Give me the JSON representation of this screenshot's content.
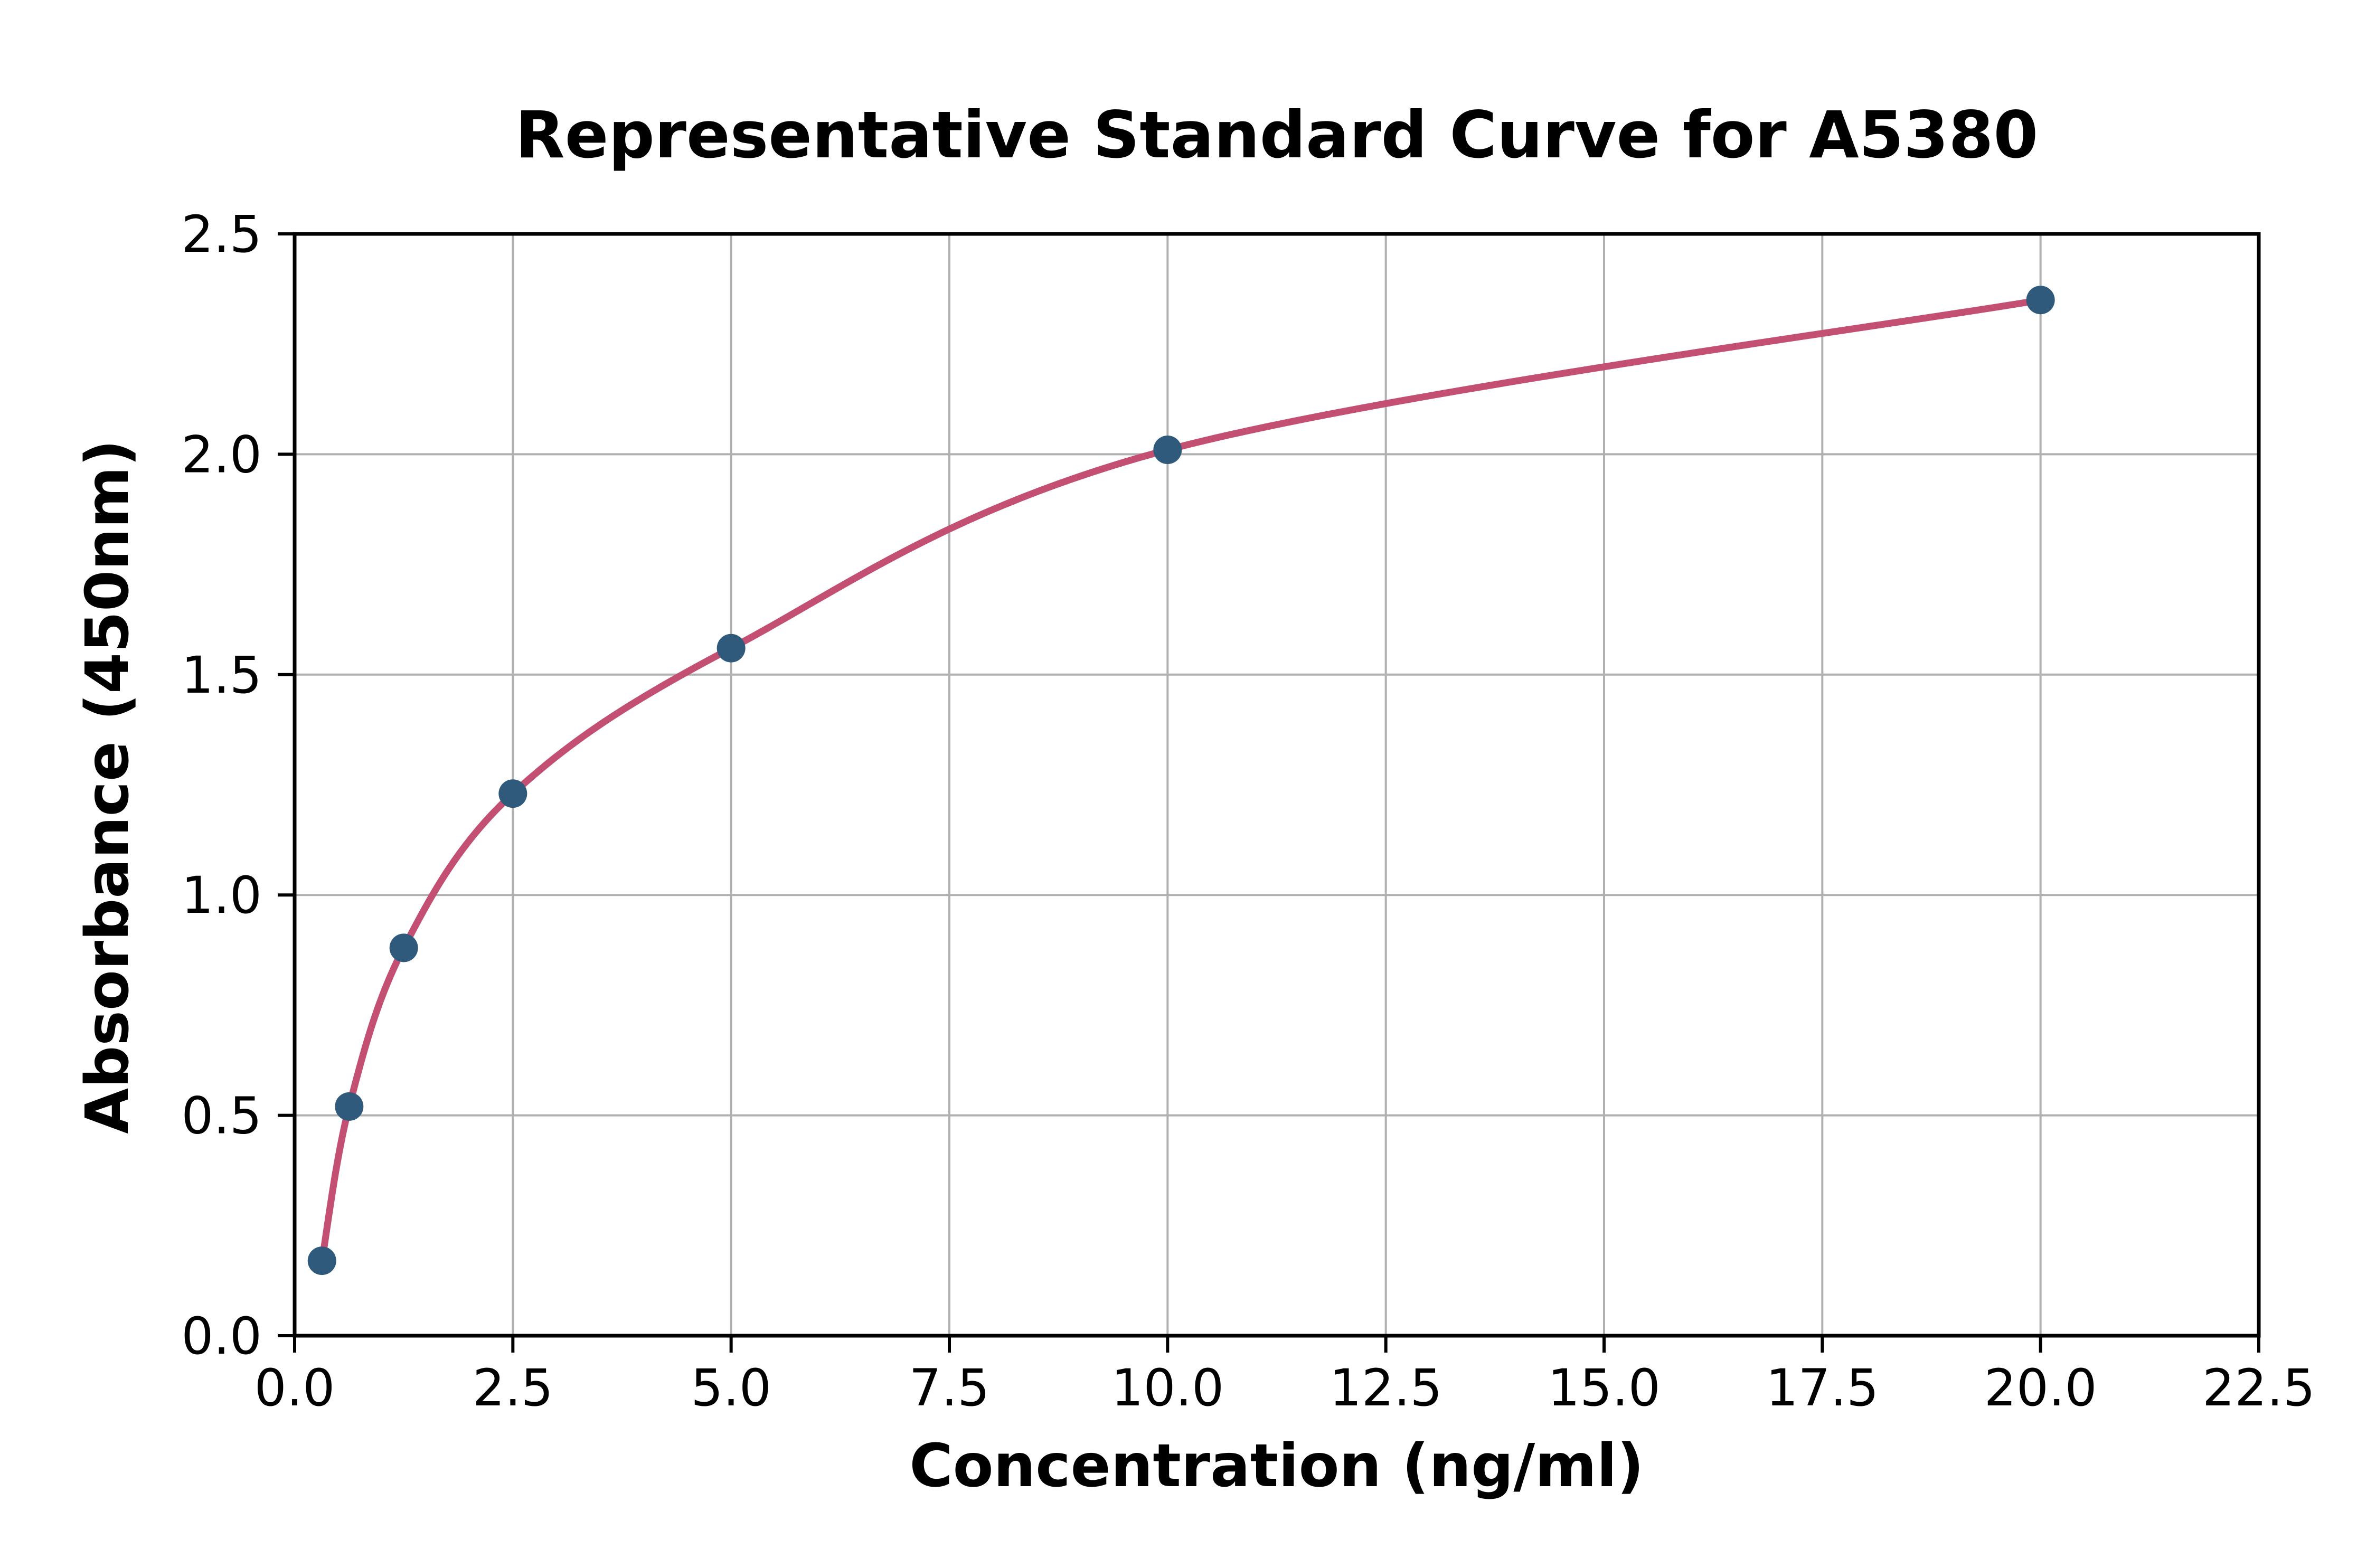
{
  "figure": {
    "background_color": "#ffffff"
  },
  "chart_data": {
    "type": "scatter",
    "title": "Representative Standard Curve for A5380",
    "xlabel": "Concentration (ng/ml)",
    "ylabel": "Absorbance (450nm)",
    "x": [
      0.313,
      0.625,
      1.25,
      2.5,
      5,
      10,
      20
    ],
    "y": [
      0.17,
      0.52,
      0.88,
      1.23,
      1.56,
      2.01,
      2.35
    ],
    "fit_line": true,
    "xlim": [
      0,
      22.5
    ],
    "ylim": [
      0,
      2.5
    ],
    "x_ticks": [
      "0.0",
      "2.5",
      "5.0",
      "7.5",
      "10.0",
      "12.5",
      "15.0",
      "17.5",
      "20.0",
      "22.5"
    ],
    "y_ticks": [
      "0.0",
      "0.5",
      "1.0",
      "1.5",
      "2.0",
      "2.5"
    ],
    "grid": true,
    "legend_position": "none",
    "colors": {
      "curve": "#c35073",
      "points": "#2f5a7c",
      "grid": "#b0b0b0",
      "axis": "#000000",
      "background": "#ffffff"
    }
  }
}
